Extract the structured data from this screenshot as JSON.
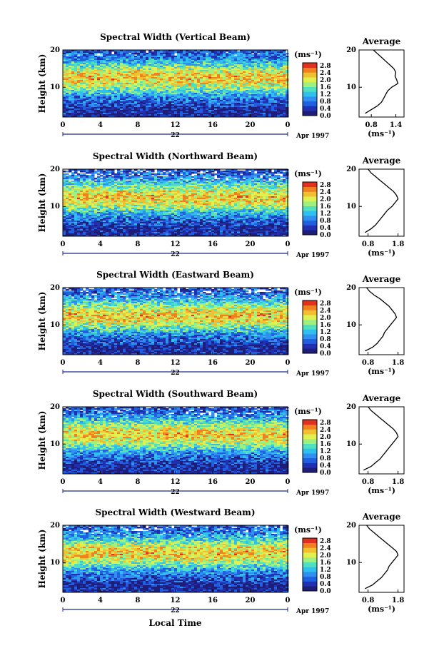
{
  "chart_data": [
    {
      "type": "heatmap",
      "title": "Spectral Width (Vertical Beam)",
      "ylabel": "Height (km)",
      "x_ticks": [
        "0",
        "4",
        "8",
        "12",
        "16",
        "20",
        "0"
      ],
      "y_ticks": [
        "20",
        "10"
      ],
      "date_day": "22",
      "date_month": "Apr 1997",
      "colorbar_unit": "(ms⁻¹)",
      "colorbar_ticks": [
        "2.8",
        "2.4",
        "2.0",
        "1.6",
        "1.2",
        "0.8",
        "0.4",
        "0.0"
      ],
      "xlim": [
        0,
        24
      ],
      "ylim": [
        2,
        20
      ],
      "profile": {
        "title": "Average",
        "x_ticks": [
          "0.8",
          "1.4"
        ],
        "xlim": [
          0.5,
          1.6
        ],
        "y_ticks": [
          "20",
          "10"
        ],
        "unit": "(ms⁻¹)",
        "heights": [
          3,
          4,
          5,
          6,
          7,
          8,
          9,
          10,
          11,
          12,
          13,
          14,
          15,
          16,
          17,
          18,
          19,
          20
        ],
        "values": [
          0.65,
          0.8,
          0.95,
          1.05,
          1.1,
          1.15,
          1.2,
          1.3,
          1.45,
          1.42,
          1.38,
          1.4,
          1.35,
          1.25,
          1.15,
          1.05,
          0.95,
          0.85
        ]
      }
    },
    {
      "type": "heatmap",
      "title": "Spectral Width (Northward Beam)",
      "ylabel": "Height (km)",
      "x_ticks": [
        "0",
        "4",
        "8",
        "12",
        "16",
        "20",
        "0"
      ],
      "y_ticks": [
        "20",
        "10"
      ],
      "date_day": "22",
      "date_month": "Apr 1997",
      "colorbar_unit": "(ms⁻¹)",
      "colorbar_ticks": [
        "2.8",
        "2.4",
        "2.0",
        "1.6",
        "1.2",
        "0.8",
        "0.4",
        "0.0"
      ],
      "xlim": [
        0,
        24
      ],
      "ylim": [
        2,
        20
      ],
      "profile": {
        "title": "Average",
        "x_ticks": [
          "0.8",
          "1.8"
        ],
        "xlim": [
          0.5,
          2.0
        ],
        "y_ticks": [
          "20",
          "10"
        ],
        "unit": "(ms⁻¹)",
        "heights": [
          3,
          4,
          5,
          6,
          7,
          8,
          9,
          10,
          11,
          12,
          13,
          14,
          15,
          16,
          17,
          18,
          19,
          20
        ],
        "values": [
          0.7,
          0.9,
          1.05,
          1.15,
          1.25,
          1.35,
          1.45,
          1.6,
          1.7,
          1.8,
          1.75,
          1.65,
          1.5,
          1.35,
          1.2,
          1.05,
          0.9,
          0.8
        ]
      }
    },
    {
      "type": "heatmap",
      "title": "Spectral Width (Eastward Beam)",
      "ylabel": "Height (km)",
      "x_ticks": [
        "0",
        "4",
        "8",
        "12",
        "16",
        "20",
        "0"
      ],
      "y_ticks": [
        "20",
        "10"
      ],
      "date_day": "22",
      "date_month": "Apr 1997",
      "colorbar_unit": "(ms⁻¹)",
      "colorbar_ticks": [
        "2.8",
        "2.4",
        "2.0",
        "1.6",
        "1.2",
        "0.8",
        "0.4",
        "0.0"
      ],
      "xlim": [
        0,
        24
      ],
      "ylim": [
        2,
        20
      ],
      "profile": {
        "title": "Average",
        "x_ticks": [
          "0.8",
          "1.8"
        ],
        "xlim": [
          0.5,
          2.0
        ],
        "y_ticks": [
          "20",
          "10"
        ],
        "unit": "(ms⁻¹)",
        "heights": [
          3,
          4,
          5,
          6,
          7,
          8,
          9,
          10,
          11,
          12,
          13,
          14,
          15,
          16,
          17,
          18,
          19,
          20
        ],
        "values": [
          0.7,
          0.95,
          1.1,
          1.2,
          1.3,
          1.35,
          1.45,
          1.55,
          1.65,
          1.75,
          1.7,
          1.6,
          1.5,
          1.35,
          1.2,
          1.0,
          0.85,
          0.75
        ]
      }
    },
    {
      "type": "heatmap",
      "title": "Spectral Width (Southward Beam)",
      "ylabel": "Height (km)",
      "x_ticks": [
        "0",
        "4",
        "8",
        "12",
        "16",
        "20",
        "0"
      ],
      "y_ticks": [
        "20",
        "10"
      ],
      "date_day": "22",
      "date_month": "Apr 1997",
      "colorbar_unit": "(ms⁻¹)",
      "colorbar_ticks": [
        "2.8",
        "2.4",
        "2.0",
        "1.6",
        "1.2",
        "0.8",
        "0.4",
        "0.0"
      ],
      "xlim": [
        0,
        24
      ],
      "ylim": [
        2,
        20
      ],
      "profile": {
        "title": "Average",
        "x_ticks": [
          "0.8",
          "1.8"
        ],
        "xlim": [
          0.5,
          2.0
        ],
        "y_ticks": [
          "20",
          "10"
        ],
        "unit": "(ms⁻¹)",
        "heights": [
          3,
          4,
          5,
          6,
          7,
          8,
          9,
          10,
          11,
          12,
          13,
          14,
          15,
          16,
          17,
          18,
          19,
          20
        ],
        "values": [
          0.65,
          0.9,
          1.05,
          1.2,
          1.3,
          1.4,
          1.5,
          1.6,
          1.7,
          1.8,
          1.75,
          1.65,
          1.5,
          1.35,
          1.2,
          1.05,
          0.9,
          0.8
        ]
      }
    },
    {
      "type": "heatmap",
      "title": "Spectral Width (Westward Beam)",
      "ylabel": "Height (km)",
      "x_ticks": [
        "0",
        "4",
        "8",
        "12",
        "16",
        "20",
        "0"
      ],
      "y_ticks": [
        "20",
        "10"
      ],
      "date_day": "22",
      "date_month": "Apr 1997",
      "colorbar_unit": "(ms⁻¹)",
      "colorbar_ticks": [
        "2.8",
        "2.4",
        "2.0",
        "1.6",
        "1.2",
        "0.8",
        "0.4",
        "0.0"
      ],
      "xlim": [
        0,
        24
      ],
      "ylim": [
        2,
        20
      ],
      "profile": {
        "title": "Average",
        "x_ticks": [
          "0.8",
          "1.8"
        ],
        "xlim": [
          0.5,
          2.0
        ],
        "y_ticks": [
          "20",
          "10"
        ],
        "unit": "(ms⁻¹)",
        "heights": [
          3,
          4,
          5,
          6,
          7,
          8,
          9,
          10,
          11,
          12,
          13,
          14,
          15,
          16,
          17,
          18,
          19,
          20
        ],
        "values": [
          0.7,
          0.95,
          1.1,
          1.25,
          1.35,
          1.45,
          1.5,
          1.6,
          1.7,
          1.8,
          1.75,
          1.6,
          1.45,
          1.3,
          1.15,
          1.0,
          0.85,
          0.75
        ]
      }
    }
  ],
  "xlabel": "Local Time",
  "colormap": [
    "#1e1e78",
    "#2030b0",
    "#2060e0",
    "#3090f0",
    "#30c0f0",
    "#50e0c0",
    "#a0f080",
    "#e0f050",
    "#f0c030",
    "#f08020",
    "#e03020"
  ]
}
